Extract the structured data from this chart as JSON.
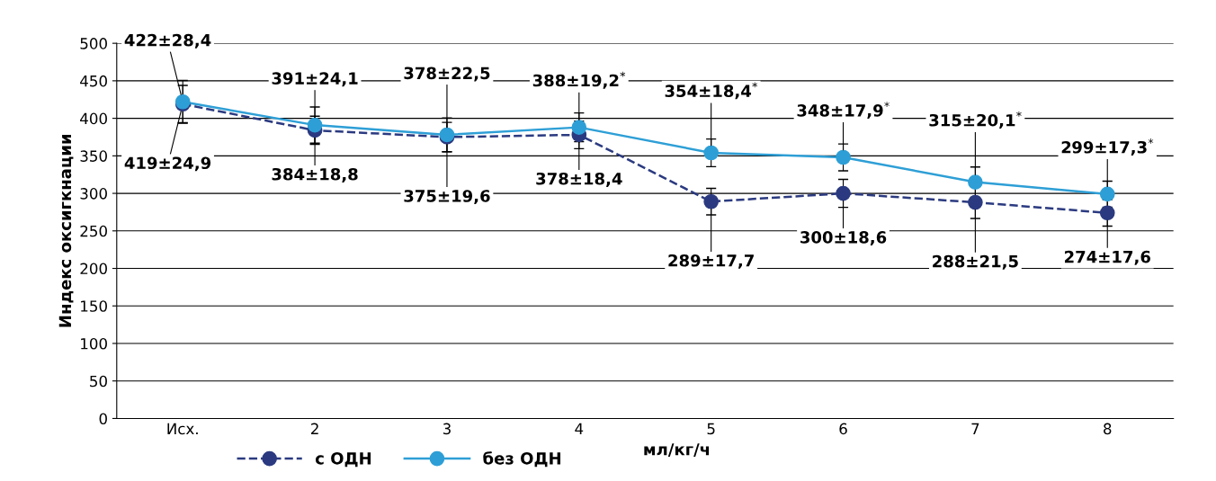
{
  "chart_data": {
    "type": "line",
    "ylabel": "Индекс оксигкнации",
    "xlabel": "мл/кг/ч",
    "categories": [
      "Исх.",
      "2",
      "3",
      "4",
      "5",
      "6",
      "7",
      "8"
    ],
    "ylim": [
      0,
      500
    ],
    "yticks": [
      0,
      50,
      100,
      150,
      200,
      250,
      300,
      350,
      400,
      450,
      500
    ],
    "grid": "y",
    "legend": "bottom",
    "marker": "circle",
    "series": [
      {
        "name": "с ОДН",
        "color": "#2b3a80",
        "line_style": "dashed",
        "values": [
          419,
          384,
          375,
          378,
          289,
          300,
          288,
          274
        ],
        "errors": [
          24.9,
          18.8,
          19.6,
          18.4,
          17.7,
          18.6,
          21.5,
          17.6
        ],
        "value_labels": [
          "419±24,9",
          "384±18,8",
          "375±19,6",
          "378±18,4",
          "289±17,7",
          "300±18,6",
          "288±21,5",
          "274±17,6"
        ]
      },
      {
        "name": "без ОДН",
        "color": "#2e9fd6",
        "line_style": "solid",
        "values": [
          422,
          391,
          378,
          388,
          354,
          348,
          315,
          299
        ],
        "errors": [
          28.4,
          24.1,
          22.5,
          19.2,
          18.4,
          17.9,
          20.1,
          17.3
        ],
        "value_labels": [
          "422±28,4",
          "391±24,1",
          "378±22,5",
          "388±19,2$^{*}$",
          "354±18,4$^{*}$",
          "348±17,9$^{*}$",
          "315±20,1$^{*}$",
          "299±17,3$^{*}$"
        ]
      }
    ]
  }
}
